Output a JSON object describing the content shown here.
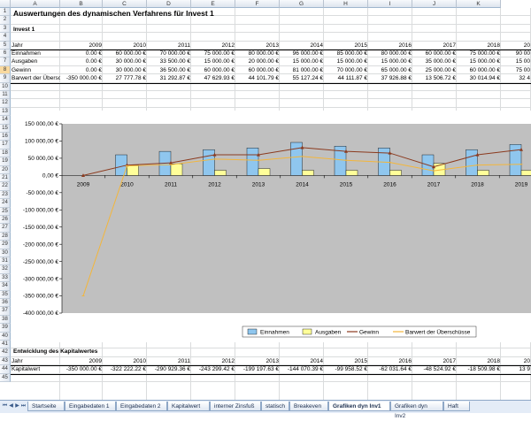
{
  "columns": [
    "A",
    "B",
    "C",
    "D",
    "E",
    "F",
    "G",
    "H",
    "I",
    "J",
    "K"
  ],
  "row_numbers": [
    "1",
    "2",
    "3",
    "4",
    "5",
    "6",
    "7",
    "8",
    "9",
    "10",
    "11",
    "12",
    "13",
    "14",
    "15",
    "16",
    "17",
    "18",
    "19",
    "20",
    "21",
    "22",
    "23",
    "24",
    "25",
    "26",
    "27",
    "28",
    "29",
    "30",
    "31",
    "32",
    "33",
    "34",
    "35",
    "36",
    "37",
    "38",
    "39",
    "40",
    "41",
    "42",
    "43",
    "44",
    "45"
  ],
  "title": "Auswertungen des dynamischen Verfahrens für Invest 1",
  "section1": "Invest 1",
  "table1": {
    "headers": [
      "Jahr",
      "2009",
      "2010",
      "2011",
      "2012",
      "2013",
      "2014",
      "2015",
      "2016",
      "2017",
      "2018",
      "20"
    ],
    "rows": [
      {
        "label": "Einnahmen",
        "values": [
          "0.00 €",
          "60 000.00 €",
          "70 000.00 €",
          "75 000.00 €",
          "80 000.00 €",
          "96 000.00 €",
          "85 000.00 €",
          "80 000.00 €",
          "60 000.00 €",
          "75 000.00 €",
          "90 00"
        ]
      },
      {
        "label": "Ausgaben",
        "values": [
          "0.00 €",
          "30 000.00 €",
          "33 500.00 €",
          "15 000.00 €",
          "20 000.00 €",
          "15 000.00 €",
          "15 000.00 €",
          "15 000.00 €",
          "35 000.00 €",
          "15 000.00 €",
          "15 00"
        ]
      },
      {
        "label": "Gewinn",
        "values": [
          "0.00 €",
          "30 000.00 €",
          "36 500.00 €",
          "60 000.00 €",
          "60 000.00 €",
          "81 000.00 €",
          "70 000.00 €",
          "65 000.00 €",
          "25 000.00 €",
          "60 000.00 €",
          "75 00"
        ]
      },
      {
        "label": "Barwert der Überschüsse",
        "values": [
          "-350 000.00 €",
          "27 777.78 €",
          "31 292.87 €",
          "47 629.93 €",
          "44 101.79 €",
          "55 127.24 €",
          "44 111.87 €",
          "37 926.88 €",
          "13 506.72 €",
          "30 014.94 €",
          "32 4"
        ]
      }
    ]
  },
  "chart_data": {
    "type": "bar",
    "categories": [
      "2009",
      "2010",
      "2011",
      "2012",
      "2013",
      "2014",
      "2015",
      "2016",
      "2017",
      "2018",
      "2019"
    ],
    "series": [
      {
        "name": "Einnahmen",
        "kind": "bar",
        "color": "#8fc6ee",
        "values": [
          0,
          60000,
          70000,
          75000,
          80000,
          96000,
          85000,
          80000,
          60000,
          75000,
          90000
        ]
      },
      {
        "name": "Ausgaben",
        "kind": "bar",
        "color": "#ffff99",
        "values": [
          0,
          30000,
          33500,
          15000,
          20000,
          15000,
          15000,
          15000,
          35000,
          15000,
          15000
        ]
      },
      {
        "name": "Gewinn",
        "kind": "line",
        "color": "#8b3a1e",
        "values": [
          0,
          30000,
          36500,
          60000,
          60000,
          81000,
          70000,
          65000,
          25000,
          60000,
          75000
        ]
      },
      {
        "name": "Barwert der Überschüsse",
        "kind": "line",
        "color": "#f3b63b",
        "values": [
          -350000,
          27777.78,
          31292.87,
          47629.93,
          44101.79,
          55127.24,
          44111.87,
          37926.88,
          13506.72,
          30014.94,
          32400
        ]
      }
    ],
    "ylim": [
      -400000,
      150000
    ],
    "yticks": [
      "150 000,00 €",
      "100 000,00 €",
      "50 000,00 €",
      "0,00 €",
      "-50 000,00 €",
      "-100 000,00 €",
      "-150 000,00 €",
      "-200 000,00 €",
      "-250 000,00 €",
      "-300 000,00 €",
      "-350 000,00 €",
      "-400 000,00 €"
    ],
    "plot_bg": "#c0c0c0",
    "legend": "bottom-right"
  },
  "section2": "Entwicklung des Kapitalwertes",
  "table2": {
    "headers": [
      "Jahr",
      "2009",
      "2010",
      "2011",
      "2012",
      "2013",
      "2014",
      "2015",
      "2016",
      "2017",
      "2018",
      "20"
    ],
    "label": "Kapitalwert",
    "values": [
      "-350 000.00 €",
      "-322 222.22 €",
      "-290 929.36 €",
      "-243 299.42 €",
      "-199 197.63 €",
      "-144 070.39 €",
      "-99 958.52 €",
      "-62 031.64 €",
      "-48 524.92 €",
      "-18 509.98 €",
      "13 9"
    ]
  },
  "tabs": [
    "Startseite",
    "Eingabedaten 1",
    "Eingabedaten 2",
    "Kapitalwert",
    "interner Zinsfuß",
    "statisch",
    "Breakeven",
    "Grafiken dyn Inv1",
    "Grafiken dyn Inv2",
    "Haft"
  ],
  "active_tab": 7
}
